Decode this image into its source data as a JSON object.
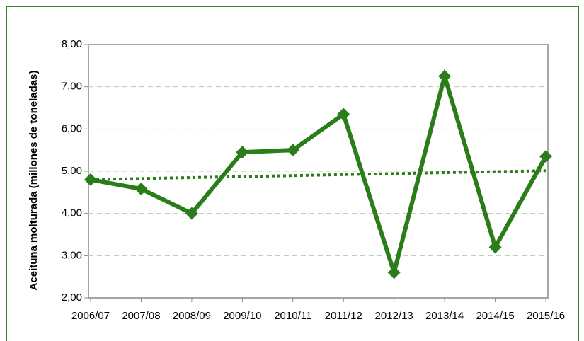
{
  "chart_data": {
    "type": "line",
    "y_axis_label": "Aceituna molturada (millones de toneladas)",
    "categories": [
      "2006/07",
      "2007/08",
      "2008/09",
      "2009/10",
      "2010/11",
      "2011/12",
      "2012/13",
      "2013/14",
      "2014/15",
      "2015/16"
    ],
    "values": [
      4.8,
      4.58,
      4.0,
      5.45,
      5.5,
      6.35,
      2.6,
      7.25,
      3.2,
      5.35
    ],
    "color": "#2a7d18",
    "trendline": "linear",
    "ylim": [
      2,
      8
    ],
    "yticks": [
      {
        "value": 2,
        "label": "2,00"
      },
      {
        "value": 3,
        "label": "3,00"
      },
      {
        "value": 4,
        "label": "4,00"
      },
      {
        "value": 5,
        "label": "5,00"
      },
      {
        "value": 6,
        "label": "6,00"
      },
      {
        "value": 7,
        "label": "7,00"
      },
      {
        "value": 8,
        "label": "8,00"
      }
    ],
    "grid": true
  }
}
